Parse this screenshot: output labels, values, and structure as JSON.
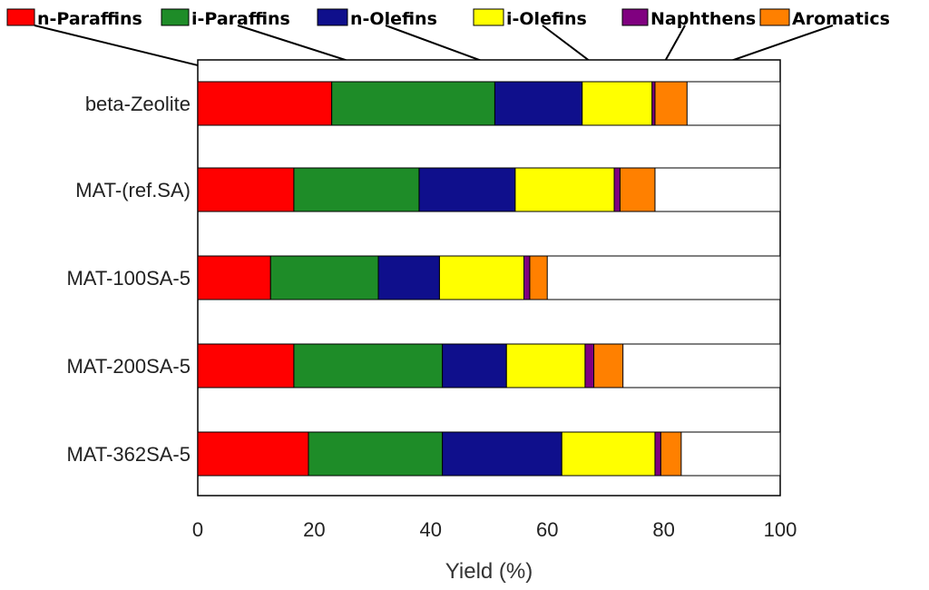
{
  "chart_data": {
    "type": "bar",
    "orientation": "horizontal",
    "stacked": true,
    "categories": [
      "beta-Zeolite",
      "MAT-(ref.SA)",
      "MAT-100SA-5",
      "MAT-200SA-5",
      "MAT-362SA-5"
    ],
    "series": [
      {
        "name": "n-Paraffins",
        "color": "#ff0000",
        "values": [
          23,
          16.5,
          12.5,
          16.5,
          19
        ]
      },
      {
        "name": "i-Paraffins",
        "color": "#1e8c28",
        "values": [
          28,
          21.5,
          18.5,
          25.5,
          23
        ]
      },
      {
        "name": "n-Olefins",
        "color": "#0f0f8c",
        "values": [
          15,
          16.5,
          10.5,
          11,
          20.5
        ]
      },
      {
        "name": "i-Olefins",
        "color": "#ffff00",
        "values": [
          12,
          17,
          14.5,
          13.5,
          16
        ]
      },
      {
        "name": "Naphthens",
        "color": "#800080",
        "values": [
          0.5,
          1,
          1,
          1.5,
          1
        ]
      },
      {
        "name": "Aromatics",
        "color": "#ff8000",
        "values": [
          5.5,
          6,
          3,
          5,
          3.5
        ]
      }
    ],
    "xlabel": "Yield (%)",
    "ylabel": "",
    "xlim": [
      0,
      100
    ],
    "xticks": [
      "0",
      "20",
      "40",
      "60",
      "80",
      "100"
    ],
    "legend_position": "top"
  }
}
